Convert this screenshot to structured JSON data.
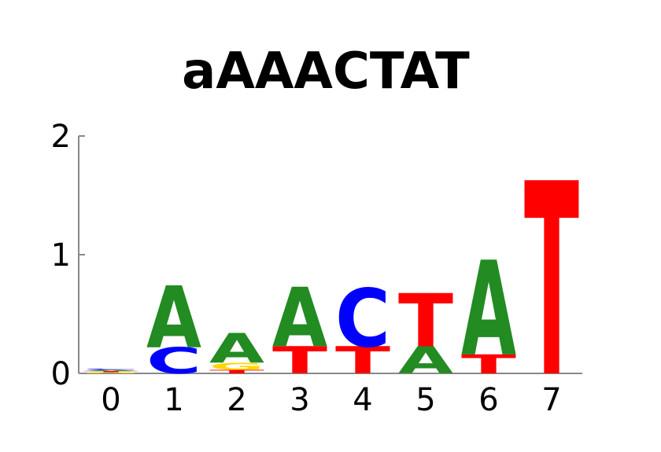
{
  "chart_data": {
    "type": "sequence-logo",
    "title": "aAAACTAT",
    "xlabel": "",
    "ylabel": "",
    "ylim": [
      0,
      2
    ],
    "yticks": [
      "0",
      "1",
      "2"
    ],
    "positions": [
      "0",
      "1",
      "2",
      "3",
      "4",
      "5",
      "6",
      "7"
    ],
    "colors": {
      "A": "#228b22",
      "C": "#0000ff",
      "G": "#ffd700",
      "T": "#ff0000"
    },
    "stacks": [
      [
        {
          "letter": "G",
          "height": 0.01
        },
        {
          "letter": "T",
          "height": 0.01
        },
        {
          "letter": "A",
          "height": 0.01
        },
        {
          "letter": "C",
          "height": 0.01
        }
      ],
      [
        {
          "letter": "C",
          "height": 0.22
        },
        {
          "letter": "A",
          "height": 0.52
        }
      ],
      [
        {
          "letter": "T",
          "height": 0.03
        },
        {
          "letter": "G",
          "height": 0.06
        },
        {
          "letter": "A",
          "height": 0.25
        }
      ],
      [
        {
          "letter": "T",
          "height": 0.23
        },
        {
          "letter": "A",
          "height": 0.5
        }
      ],
      [
        {
          "letter": "T",
          "height": 0.23
        },
        {
          "letter": "C",
          "height": 0.49
        }
      ],
      [
        {
          "letter": "A",
          "height": 0.23
        },
        {
          "letter": "T",
          "height": 0.45
        }
      ],
      [
        {
          "letter": "T",
          "height": 0.16
        },
        {
          "letter": "A",
          "height": 0.8
        }
      ],
      [
        {
          "letter": "T",
          "height": 1.63
        }
      ]
    ]
  }
}
